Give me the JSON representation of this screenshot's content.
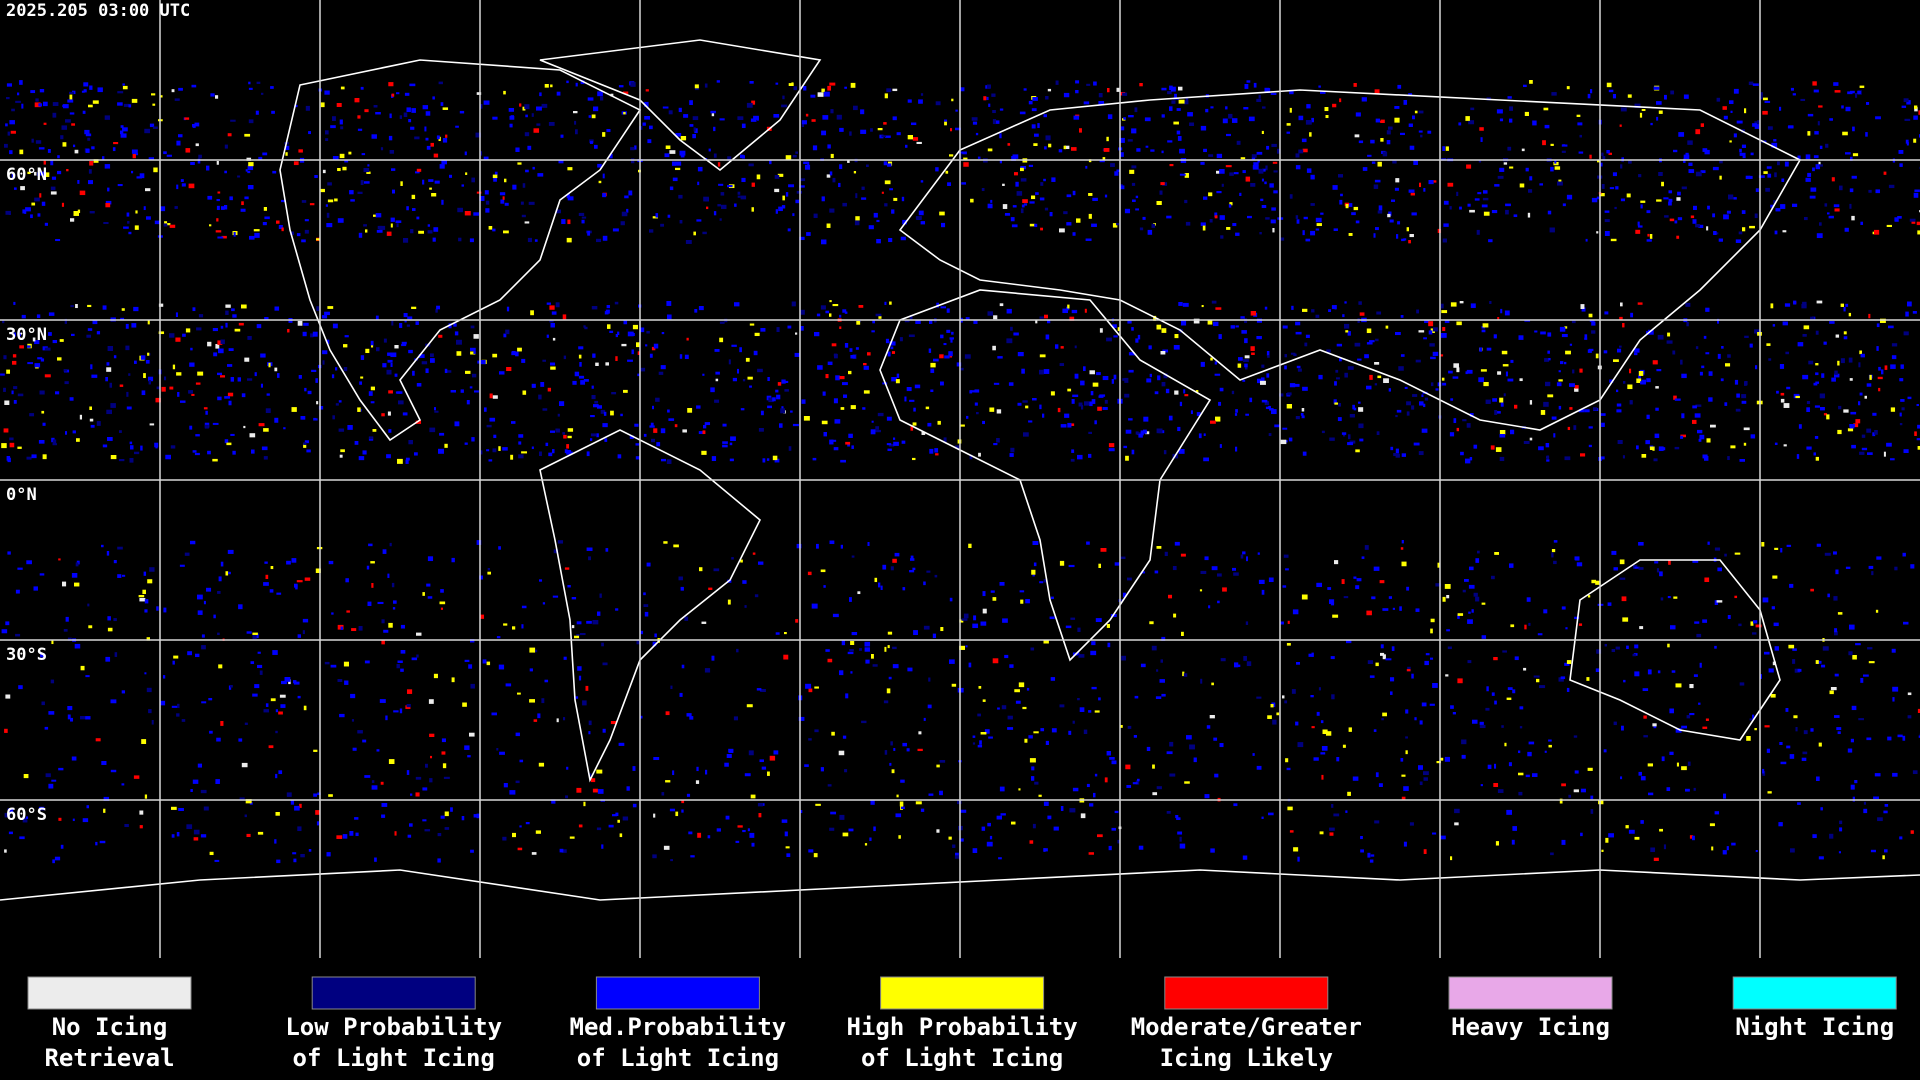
{
  "header": {
    "timestamp": "2025.205 03:00 UTC"
  },
  "latitude_labels": [
    "60°N",
    "30°N",
    "0°N",
    "30°S",
    "60°S"
  ],
  "legend": [
    {
      "lines": [
        "No Icing",
        "Retrieval"
      ],
      "color": "#ececec"
    },
    {
      "lines": [
        "Low Probability",
        "of Light Icing"
      ],
      "color": "#000080"
    },
    {
      "lines": [
        "Med.Probability",
        "of Light Icing"
      ],
      "color": "#0000ff"
    },
    {
      "lines": [
        "High Probability",
        "of Light Icing"
      ],
      "color": "#ffff00"
    },
    {
      "lines": [
        "Moderate/Greater",
        "Icing Likely"
      ],
      "color": "#ff0000"
    },
    {
      "lines": [
        "Heavy Icing"
      ],
      "color": "#e8a8e8"
    },
    {
      "lines": [
        "Night Icing"
      ],
      "color": "#00ffff"
    }
  ]
}
